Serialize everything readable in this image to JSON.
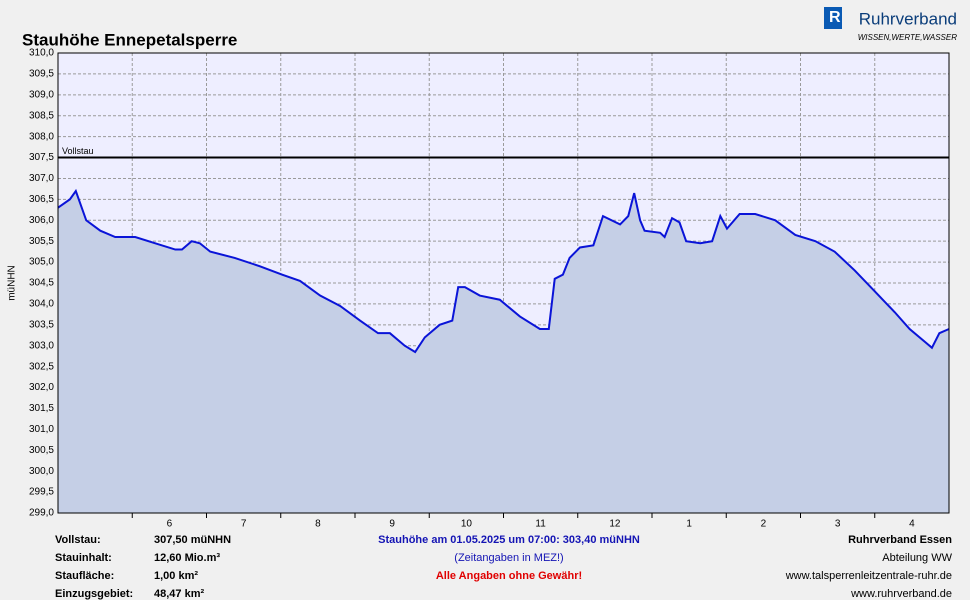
{
  "chart_data": {
    "type": "area",
    "title": "Stauhöhe Ennepetalsperre",
    "y_label": "müNHN",
    "categories": [
      null,
      "6",
      "7",
      "8",
      "9",
      "10",
      "11",
      "12",
      "1",
      "2",
      "3",
      "4"
    ],
    "xlim": [
      0,
      12
    ],
    "series": [
      {
        "name": "Stauhöhe",
        "color": "#0a14d8",
        "fill": "#c5cfe6",
        "x": [
          0,
          0.16,
          0.24,
          0.38,
          0.57,
          0.77,
          1.04,
          1.31,
          1.58,
          1.67,
          1.8,
          1.91,
          2.05,
          2.38,
          2.72,
          3.02,
          3.26,
          3.53,
          3.8,
          4.07,
          4.31,
          4.47,
          4.67,
          4.81,
          4.94,
          5.14,
          5.31,
          5.39,
          5.48,
          5.68,
          5.95,
          6.22,
          6.49,
          6.61,
          6.69,
          6.8,
          6.89,
          7.03,
          7.21,
          7.34,
          7.57,
          7.68,
          7.76,
          7.84,
          7.9,
          8.11,
          8.17,
          8.27,
          8.37,
          8.46,
          8.65,
          8.81,
          8.92,
          9.01,
          9.18,
          9.39,
          9.66,
          9.93,
          10.2,
          10.46,
          10.73,
          11.0,
          11.27,
          11.47,
          11.67,
          11.77,
          11.87,
          12.0
        ],
        "values": [
          306.3,
          306.5,
          306.7,
          306.0,
          305.75,
          305.6,
          305.6,
          305.45,
          305.3,
          305.3,
          305.5,
          305.45,
          305.25,
          305.1,
          304.9,
          304.7,
          304.55,
          304.2,
          303.95,
          303.6,
          303.3,
          303.3,
          303.0,
          302.85,
          303.2,
          303.5,
          303.6,
          304.4,
          304.4,
          304.2,
          304.1,
          303.7,
          303.4,
          303.4,
          304.6,
          304.7,
          305.1,
          305.35,
          305.4,
          306.1,
          305.9,
          306.1,
          306.65,
          306.0,
          305.75,
          305.7,
          305.6,
          306.05,
          305.95,
          305.5,
          305.45,
          305.5,
          306.1,
          305.8,
          306.15,
          306.15,
          306.0,
          305.65,
          305.5,
          305.25,
          304.8,
          304.3,
          303.8,
          303.4,
          303.1,
          302.95,
          303.3,
          303.4
        ]
      }
    ],
    "hline": {
      "value": 307.5,
      "label": "Vollstau",
      "color": "#000000"
    },
    "ylim": [
      299.0,
      310.0
    ],
    "yticks": [
      {
        "value": 299.0,
        "label": "299,0"
      },
      {
        "value": 299.5,
        "label": "299,5"
      },
      {
        "value": 300.0,
        "label": "300,0"
      },
      {
        "value": 300.5,
        "label": "300,5"
      },
      {
        "value": 301.0,
        "label": "301,0"
      },
      {
        "value": 301.5,
        "label": "301,5"
      },
      {
        "value": 302.0,
        "label": "302,0"
      },
      {
        "value": 302.5,
        "label": "302,5"
      },
      {
        "value": 303.0,
        "label": "303,0"
      },
      {
        "value": 303.5,
        "label": "303,5"
      },
      {
        "value": 304.0,
        "label": "304,0"
      },
      {
        "value": 304.5,
        "label": "304,5"
      },
      {
        "value": 305.0,
        "label": "305,0"
      },
      {
        "value": 305.5,
        "label": "305,5"
      },
      {
        "value": 306.0,
        "label": "306,0"
      },
      {
        "value": 306.5,
        "label": "306,5"
      },
      {
        "value": 307.0,
        "label": "307,0"
      },
      {
        "value": 307.5,
        "label": "307,5"
      },
      {
        "value": 308.0,
        "label": "308,0"
      },
      {
        "value": 308.5,
        "label": "308,5"
      },
      {
        "value": 309.0,
        "label": "309,0"
      },
      {
        "value": 309.5,
        "label": "309,5"
      },
      {
        "value": 310.0,
        "label": "310,0"
      }
    ],
    "grid": true
  },
  "logo": {
    "name": "Ruhrverband",
    "tagline": "WISSEN,WERTE,WASSER"
  },
  "footer": {
    "left": [
      [
        "Vollstau:",
        "307,50 müNHN"
      ],
      [
        "Stauinhalt:",
        "12,60 Mio.m³"
      ],
      [
        "Staufläche:",
        "1,00 km²"
      ],
      [
        "Einzugsgebiet:",
        "48,47 km²"
      ]
    ],
    "center": [
      "Stauhöhe am 01.05.2025 um 07:00: 303,40  müNHN",
      "(Zeitangaben in MEZ!)",
      "Alle Angaben ohne Gewähr!"
    ],
    "right": [
      "Ruhrverband Essen",
      "Abteilung WW",
      "www.talsperrenleitzentrale-ruhr.de",
      "www.ruhrverband.de"
    ]
  }
}
